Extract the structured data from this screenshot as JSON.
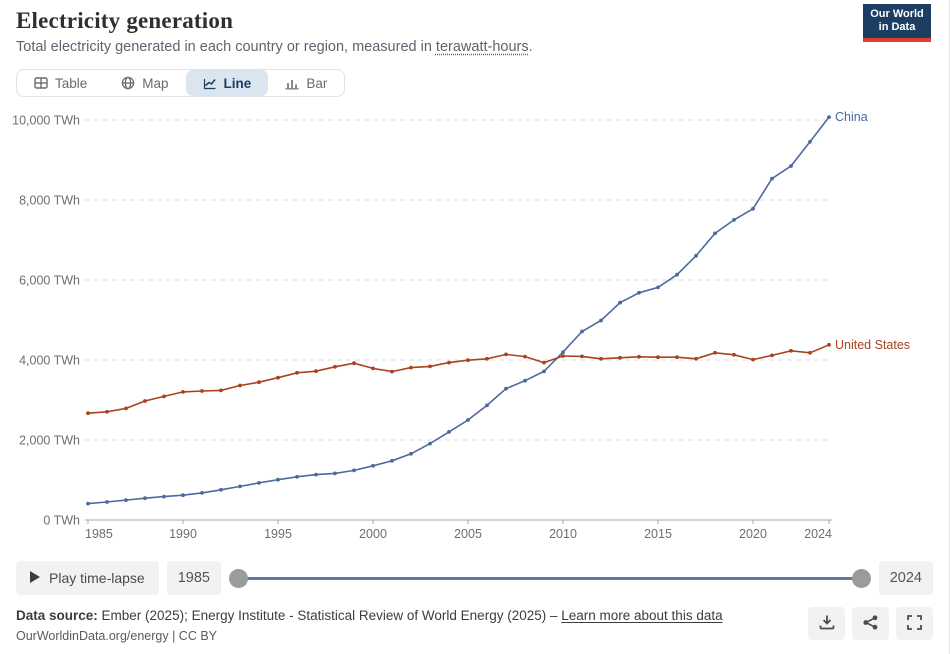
{
  "header": {
    "title": "Electricity generation",
    "subtitle_prefix": "Total electricity generated in each country or region, measured in ",
    "subtitle_link": "terawatt-hours",
    "subtitle_suffix": ".",
    "logo_line1": "Our World",
    "logo_line2": "in Data",
    "logo_bg": "#1d3d63",
    "logo_stripe": "#dc3e32"
  },
  "tabs": [
    {
      "label": "Table",
      "icon": "table-icon",
      "selected": false
    },
    {
      "label": "Map",
      "icon": "globe-icon",
      "selected": false
    },
    {
      "label": "Line",
      "icon": "line-chart-icon",
      "selected": true
    },
    {
      "label": "Bar",
      "icon": "bar-chart-icon",
      "selected": false
    }
  ],
  "chart_data": {
    "type": "line",
    "title": "Electricity generation",
    "unit": "TWh",
    "x": [
      1985,
      1986,
      1987,
      1988,
      1989,
      1990,
      1991,
      1992,
      1993,
      1994,
      1995,
      1996,
      1997,
      1998,
      1999,
      2000,
      2001,
      2002,
      2003,
      2004,
      2005,
      2006,
      2007,
      2008,
      2009,
      2010,
      2011,
      2012,
      2013,
      2014,
      2015,
      2016,
      2017,
      2018,
      2019,
      2020,
      2021,
      2022,
      2023,
      2024
    ],
    "series": [
      {
        "name": "China",
        "color": "#4C6A9C",
        "values": [
          411,
          450,
          497,
          545,
          585,
          621,
          678,
          754,
          839,
          928,
          1007,
          1081,
          1134,
          1166,
          1239,
          1356,
          1481,
          1654,
          1911,
          2203,
          2500,
          2866,
          3282,
          3482,
          3715,
          4197,
          4713,
          4988,
          5432,
          5680,
          5815,
          6133,
          6604,
          7166,
          7503,
          7779,
          8534,
          8849,
          9456,
          10073
        ]
      },
      {
        "name": "United States",
        "color": "#A8431E",
        "values": [
          2670,
          2705,
          2790,
          2975,
          3090,
          3203,
          3226,
          3240,
          3362,
          3446,
          3558,
          3680,
          3720,
          3830,
          3920,
          3790,
          3710,
          3810,
          3840,
          3935,
          3995,
          4030,
          4140,
          4085,
          3935,
          4100,
          4090,
          4030,
          4055,
          4080,
          4070,
          4070,
          4030,
          4180,
          4130,
          4010,
          4115,
          4230,
          4180,
          4380
        ]
      }
    ],
    "ylim": [
      0,
      10000
    ],
    "xlim": [
      1985,
      2024
    ],
    "yticks": [
      0,
      2000,
      4000,
      6000,
      8000,
      10000
    ],
    "ytick_labels": [
      "0 TWh",
      "2,000 TWh",
      "4,000 TWh",
      "6,000 TWh",
      "8,000 TWh",
      "10,000 TWh"
    ],
    "xticks": [
      1985,
      1990,
      1995,
      2000,
      2005,
      2010,
      2015,
      2020,
      2024
    ],
    "grid": "horizontal-dashed",
    "legend_position": "right-end-labels"
  },
  "timeline": {
    "play_label": "Play time-lapse",
    "start_year": "1985",
    "end_year": "2024"
  },
  "footer": {
    "source_label": "Data source:",
    "source_text": " Ember (2025); Energy Institute - Statistical Review of World Energy (2025) – ",
    "source_link": "Learn more about this data",
    "credit": "OurWorldinData.org/energy | CC BY",
    "action_icons": [
      "download-icon",
      "share-icon",
      "fullscreen-icon"
    ]
  }
}
